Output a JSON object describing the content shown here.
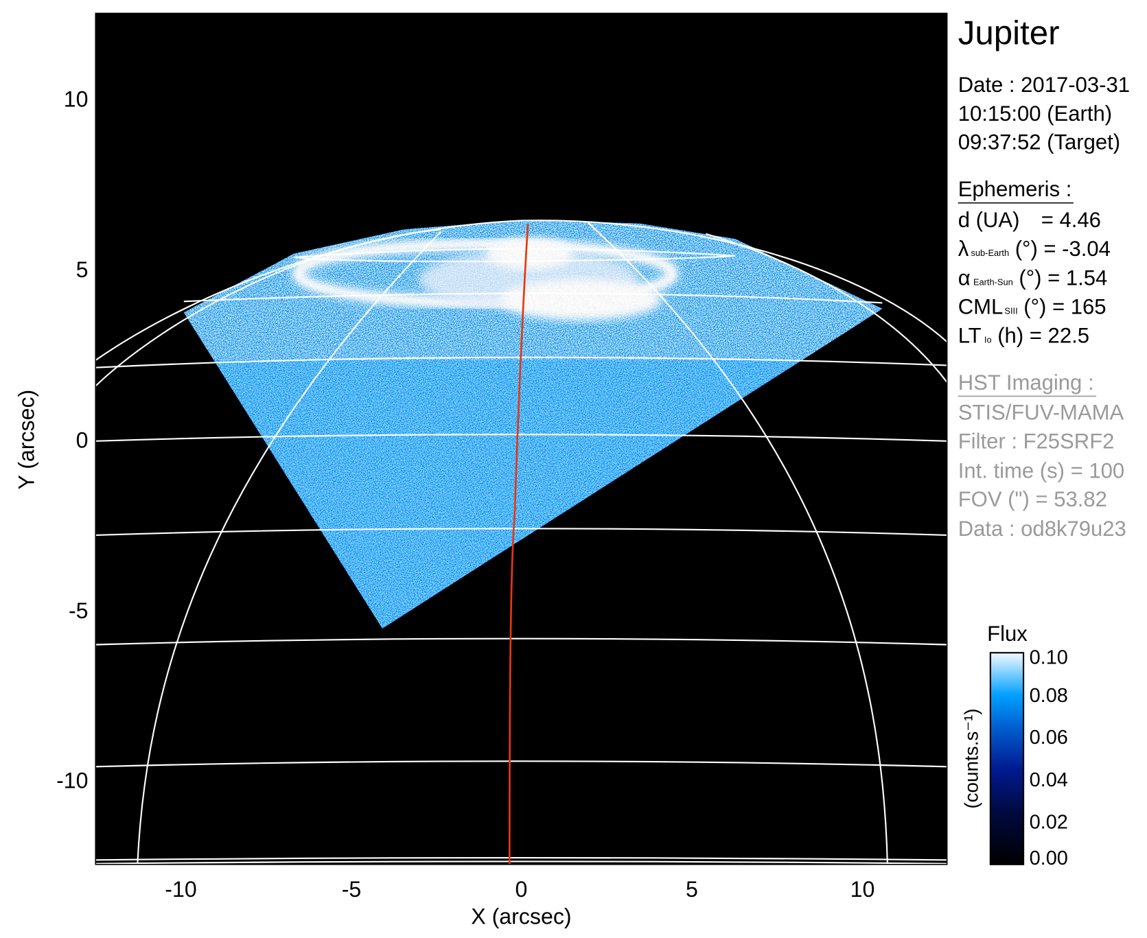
{
  "title": "Jupiter",
  "observation": {
    "date_line": "Date : 2017-03-31",
    "earth_time": "10:15:00 (Earth)",
    "target_time": "09:37:52 (Target)"
  },
  "ephemeris": {
    "header": "Ephemeris :",
    "d": {
      "label": "d (UA)",
      "value": "= 4.46"
    },
    "lambda": {
      "symbol": "λ",
      "sub": "sub-Earth",
      "rest": "(°) = -3.04"
    },
    "alpha": {
      "symbol": "α",
      "sub": "Earth-Sun",
      "rest": "(°) = 1.54"
    },
    "cml": {
      "symbol": "CML",
      "sub": "SIII",
      "rest": "(°) = 165"
    },
    "lt": {
      "symbol": "LT",
      "sub": "Io",
      "rest": "(h) = 22.5"
    }
  },
  "imaging": {
    "header": "HST Imaging :",
    "instrument": "STIS/FUV-MAMA",
    "filter": "Filter : F25SRF2",
    "int_time": "Int. time (s) = 100",
    "fov": "FOV (\") = 53.82",
    "data": "Data : od8k79u23"
  },
  "colors": {
    "background": "#000000",
    "grid": "#ffffff",
    "meridian_highlight": "#e8380d",
    "text_secondary": "#9a9a9a"
  },
  "chart_data": {
    "type": "heatmap",
    "xlabel": "X (arcsec)",
    "ylabel": "Y (arcsec)",
    "xlim": [
      -12.5,
      12.5
    ],
    "ylim": [
      -12.5,
      12.5
    ],
    "xticks": [
      "-10",
      "-5",
      "0",
      "5",
      "10"
    ],
    "yticks": [
      "10",
      "5",
      "0",
      "-5",
      "-10"
    ],
    "xtick_values": [
      -10,
      -5,
      0,
      5,
      10
    ],
    "ytick_values": [
      10,
      5,
      0,
      -5,
      -10
    ],
    "grid": "planetographic lat/lon overlay",
    "colorbar": {
      "title": "Flux",
      "label": "(counts.s⁻¹)",
      "range": [
        0.0,
        0.1
      ],
      "ticks": [
        "0.10",
        "0.08",
        "0.06",
        "0.04",
        "0.02",
        "0.00"
      ],
      "tick_values": [
        0.1,
        0.08,
        0.06,
        0.04,
        0.02,
        0.0
      ],
      "colormap": [
        "#000000",
        "#001060",
        "#0050c0",
        "#00a0ff",
        "#ffffff"
      ]
    }
  }
}
